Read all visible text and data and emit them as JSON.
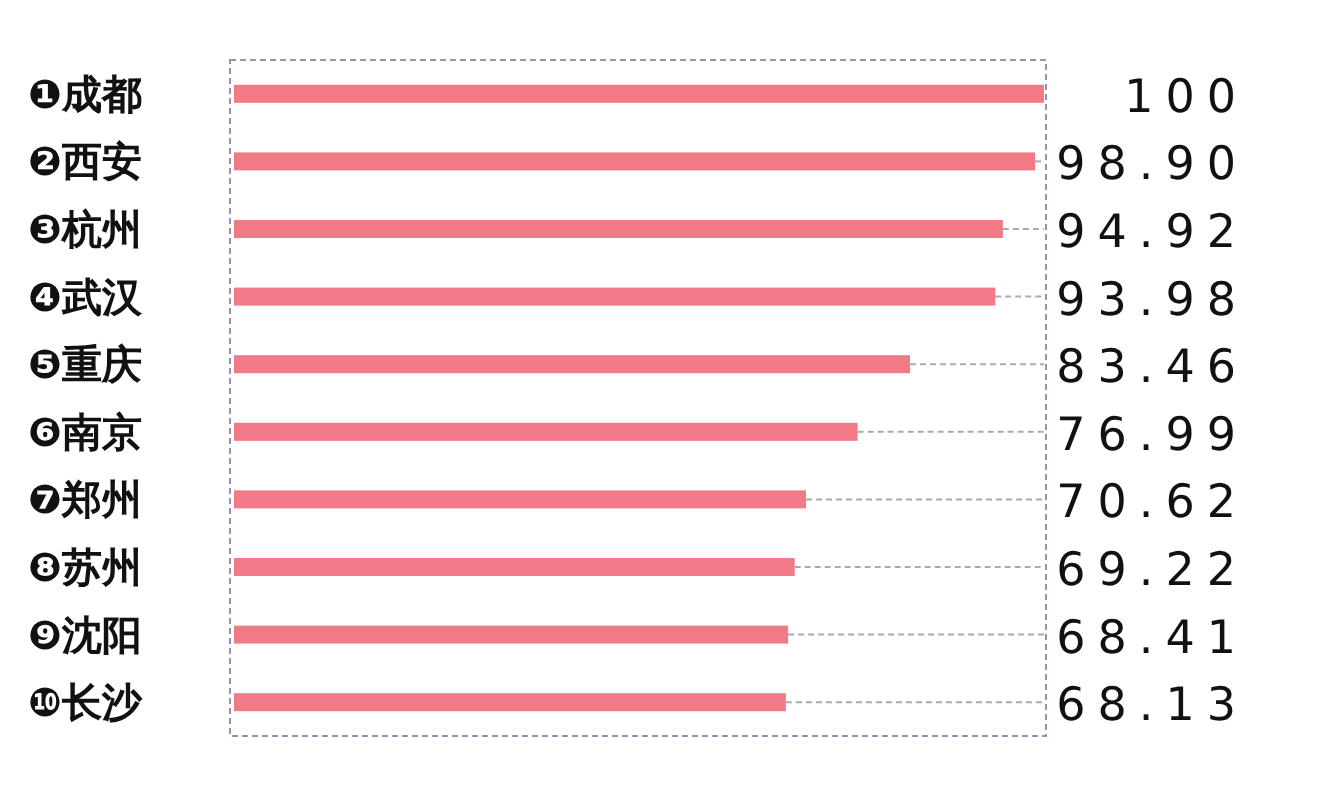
{
  "chart_data": {
    "type": "bar",
    "orientation": "horizontal",
    "categories": [
      "❶成都",
      "❷西安",
      "❸杭州",
      "❹武汉",
      "❺重庆",
      "❻南京",
      "❼郑州",
      "❽苏州",
      "❾沈阳",
      "❿长沙"
    ],
    "values": [
      100,
      98.9,
      94.92,
      93.98,
      83.46,
      76.99,
      70.62,
      69.22,
      68.41,
      68.13
    ],
    "value_labels": [
      "100",
      "98.90",
      "94.92",
      "93.98",
      "83.46",
      "76.99",
      "70.62",
      "69.22",
      "68.41",
      "68.13"
    ],
    "color": "#f07a85",
    "xlim": [
      0,
      100
    ],
    "tick_labels": "y"
  }
}
